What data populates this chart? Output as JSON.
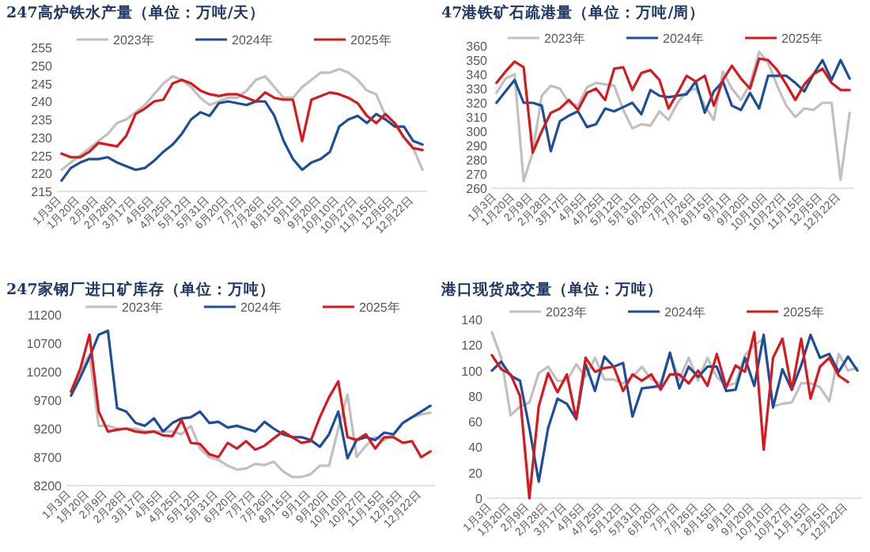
{
  "chart_data": [
    {
      "type": "line",
      "title": "247高炉铁水产量（单位：万吨/天）",
      "legend": "top",
      "ylim": [
        215,
        255
      ],
      "yticks": [
        215,
        220,
        225,
        230,
        235,
        240,
        245,
        250,
        255
      ],
      "categories": [
        "1月3日",
        null,
        "1月20日",
        null,
        "2月9日",
        null,
        "2月28日",
        null,
        "3月17日",
        null,
        "4月5日",
        null,
        "4月25日",
        null,
        "5月12日",
        null,
        "5月31日",
        null,
        "6月20日",
        null,
        "7月7日",
        null,
        "7月26日",
        null,
        "8月15日",
        null,
        "9月1日",
        null,
        "9月20日",
        null,
        "10月10日",
        null,
        "10月27日",
        null,
        "11月15日",
        null,
        "12月5日",
        null,
        "12月22日",
        null
      ],
      "series": [
        {
          "name": "2023年",
          "color": "#c0c0c0",
          "values": [
            221,
            223,
            225,
            227,
            229,
            231,
            234,
            235,
            237,
            239,
            242,
            245,
            247,
            246,
            244,
            241,
            239,
            240,
            241,
            241,
            243,
            246,
            247,
            244,
            241,
            241,
            244,
            246,
            248,
            248,
            249,
            248,
            246,
            243,
            242,
            236,
            234,
            230,
            227,
            221
          ]
        },
        {
          "name": "2024年",
          "color": "#1f4e99",
          "values": [
            218,
            221.5,
            223,
            224,
            224,
            224.5,
            223,
            222,
            221,
            221.5,
            223.5,
            226,
            228,
            231,
            235,
            237,
            236,
            239.5,
            240,
            239.5,
            239,
            240,
            240,
            236,
            229,
            224,
            221,
            223,
            224,
            226,
            233,
            235,
            236,
            234,
            236.5,
            235,
            233,
            233,
            229,
            228
          ]
        },
        {
          "name": "2025年",
          "color": "#d7191f",
          "values": [
            225.5,
            224.5,
            224.5,
            226,
            228.5,
            228,
            227.5,
            230.5,
            236.5,
            238,
            240,
            240.5,
            245,
            246,
            245,
            243,
            242,
            241.5,
            242,
            242,
            241,
            240,
            242.5,
            241,
            240.5,
            240.5,
            229,
            240.5,
            241.5,
            242.5,
            242,
            241,
            239.5,
            236,
            234,
            236.5,
            234,
            230,
            227,
            226.5
          ]
        }
      ]
    },
    {
      "type": "line",
      "title": "47港铁矿石疏港量（单位：万吨/周）",
      "legend": "top",
      "ylim": [
        260,
        360
      ],
      "yticks": [
        260,
        270,
        280,
        290,
        300,
        310,
        320,
        330,
        340,
        350,
        360
      ],
      "categories": [
        "1月3日",
        null,
        "1月20日",
        null,
        "2月9日",
        null,
        "2月28日",
        null,
        "3月17日",
        null,
        "4月5日",
        null,
        "4月25日",
        null,
        "5月12日",
        null,
        "5月31日",
        null,
        "6月20日",
        null,
        "7月7日",
        null,
        "7月26日",
        null,
        "8月15日",
        null,
        "9月1日",
        null,
        "9月20日",
        null,
        "10月10日",
        null,
        "10月27日",
        null,
        "11月15日",
        null,
        "12月5日",
        null,
        "12月22日",
        null
      ],
      "series": [
        {
          "name": "2023年",
          "color": "#c0c0c0",
          "values": [
            327,
            337,
            340,
            265,
            285,
            325,
            332,
            330,
            320,
            318,
            331,
            334,
            333,
            332,
            315,
            302,
            305,
            304,
            314,
            308,
            320,
            328,
            330,
            318,
            308,
            342,
            330,
            322,
            333,
            356,
            348,
            332,
            318,
            310,
            316,
            315,
            320,
            320,
            266,
            313
          ]
        },
        {
          "name": "2024年",
          "color": "#1f4e99",
          "values": [
            320,
            328,
            336,
            320,
            320,
            318,
            286,
            307,
            311,
            314,
            303,
            305,
            316,
            314,
            317,
            320,
            312,
            329,
            325,
            324,
            325,
            326,
            335,
            313,
            328,
            335,
            318,
            315,
            327,
            316,
            339,
            339,
            339,
            334,
            328,
            340,
            350,
            336,
            350,
            337
          ]
        },
        {
          "name": "2025年",
          "color": "#d7191f",
          "values": [
            334,
            342,
            349,
            345,
            285,
            300,
            313,
            316,
            322,
            315,
            327,
            330,
            322,
            344,
            345,
            329,
            341,
            343,
            336,
            316,
            327,
            339,
            335,
            339,
            318,
            336,
            346,
            337,
            330,
            351,
            350,
            343,
            333,
            322,
            333,
            340,
            344,
            334,
            329,
            329
          ]
        }
      ]
    },
    {
      "type": "line",
      "title": "247家钢厂进口矿库存（单位：万吨）",
      "legend": "top",
      "ylim": [
        8200,
        11200
      ],
      "yticks": [
        8200,
        8700,
        9200,
        9700,
        10200,
        10700,
        11200
      ],
      "categories": [
        "1月3日",
        null,
        "1月20日",
        null,
        "2月9日",
        null,
        "2月28日",
        null,
        "3月17日",
        null,
        "4月5日",
        null,
        "4月25日",
        null,
        "5月12日",
        null,
        "5月31日",
        null,
        "6月20日",
        null,
        "7月7日",
        null,
        "7月26日",
        null,
        "8月15日",
        null,
        "9月1日",
        null,
        "9月20日",
        null,
        "10月10日",
        null,
        "10月27日",
        null,
        "11月15日",
        null,
        "12月5日",
        null,
        "12月22日",
        null
      ],
      "series": [
        {
          "name": "2023年",
          "color": "#c0c0c0",
          "values": [
            9850,
            10200,
            10500,
            9250,
            9250,
            9200,
            9200,
            9200,
            9150,
            9150,
            9150,
            9150,
            9100,
            9250,
            8850,
            8700,
            8650,
            8550,
            8480,
            8500,
            8580,
            8560,
            8620,
            8450,
            8350,
            8350,
            8400,
            8550,
            8550,
            9200,
            9800,
            8700,
            8900,
            9050,
            9000,
            9100,
            9300,
            9400,
            9450,
            9480
          ]
        },
        {
          "name": "2024年",
          "color": "#1f4e99",
          "values": [
            9780,
            10100,
            10450,
            10850,
            10920,
            9560,
            9500,
            9300,
            9250,
            9380,
            9150,
            9300,
            9380,
            9400,
            9500,
            9300,
            9320,
            9220,
            9250,
            9200,
            9150,
            9320,
            9200,
            9100,
            9050,
            9050,
            9000,
            8880,
            9100,
            9500,
            8680,
            9000,
            9050,
            9000,
            9130,
            9100,
            9300,
            9400,
            9500,
            9600
          ]
        },
        {
          "name": "2025年",
          "color": "#d7191f",
          "values": [
            9850,
            10250,
            10850,
            9500,
            9150,
            9180,
            9200,
            9150,
            9130,
            9150,
            9080,
            9070,
            9350,
            8950,
            8930,
            8750,
            8700,
            8950,
            8850,
            8980,
            8830,
            8900,
            9030,
            9150,
            9050,
            8950,
            8980,
            9400,
            9750,
            10030,
            9050,
            9000,
            9100,
            8850,
            9050,
            9050,
            8950,
            8980,
            8700,
            8800
          ]
        }
      ]
    },
    {
      "type": "line",
      "title": "港口现货成交量（单位：万吨）",
      "legend": "top",
      "ylim": [
        0,
        140
      ],
      "yticks": [
        0,
        20,
        40,
        60,
        80,
        100,
        120,
        140
      ],
      "categories": [
        "1月3日",
        null,
        "1月20日",
        null,
        "2月9日",
        null,
        "2月28日",
        null,
        "3月17日",
        null,
        "4月5日",
        null,
        "4月25日",
        null,
        "5月12日",
        null,
        "5月31日",
        null,
        "6月20日",
        null,
        "7月7日",
        null,
        "7月26日",
        null,
        "8月15日",
        null,
        "9月1日",
        null,
        "9月20日",
        null,
        "10月10日",
        null,
        "10月27日",
        null,
        "11月15日",
        null,
        "12月5日",
        null,
        "12月22日",
        null
      ],
      "series": [
        {
          "name": "2023年",
          "color": "#c0c0c0",
          "values": [
            130,
            110,
            65,
            72,
            75,
            98,
            103,
            92,
            92,
            105,
            95,
            110,
            93,
            93,
            90,
            95,
            103,
            93,
            90,
            113,
            93,
            110,
            92,
            110,
            95,
            88,
            90,
            112,
            120,
            125,
            72,
            74,
            75,
            90,
            90,
            87,
            76,
            113,
            100,
            102
          ]
        },
        {
          "name": "2024年",
          "color": "#1f4e99",
          "values": [
            100,
            107,
            96,
            92,
            55,
            13,
            55,
            78,
            74,
            62,
            105,
            84,
            111,
            103,
            106,
            64,
            86,
            87,
            88,
            114,
            86,
            103,
            95,
            103,
            103,
            84,
            85,
            110,
            88,
            128,
            71,
            101,
            85,
            104,
            128,
            110,
            113,
            99,
            111,
            100
          ]
        },
        {
          "name": "2025年",
          "color": "#d7191f",
          "values": [
            112,
            101,
            97,
            80,
            0,
            72,
            98,
            83,
            97,
            62,
            110,
            99,
            102,
            103,
            84,
            97,
            92,
            97,
            85,
            97,
            97,
            90,
            100,
            88,
            113,
            87,
            104,
            99,
            130,
            38,
            110,
            125,
            85,
            125,
            78,
            103,
            110,
            96,
            91,
            null
          ]
        }
      ]
    }
  ]
}
